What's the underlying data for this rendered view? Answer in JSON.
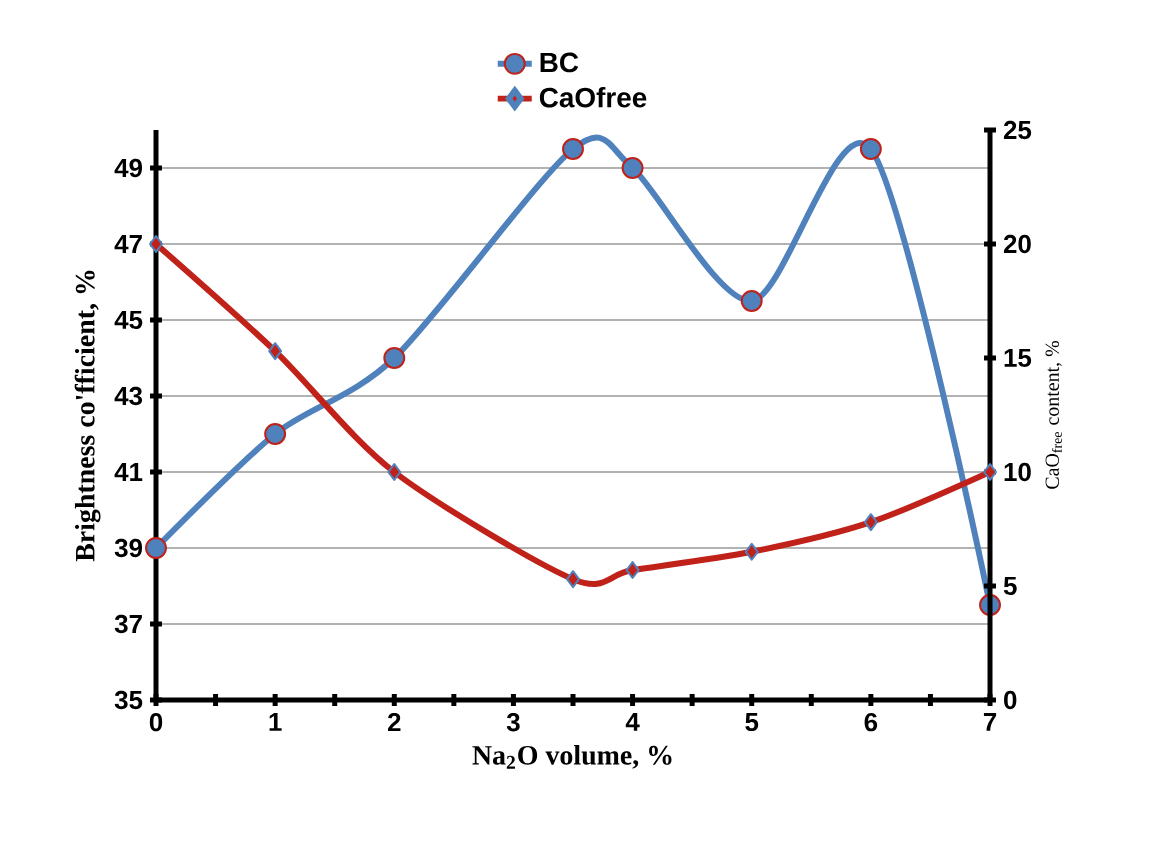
{
  "chart_data": {
    "type": "line",
    "xlabel": "Na$_{2}$O volume, %",
    "ylabel": "Brightness co'fficient, %",
    "y2label": "CaO$_{free}$ content, %",
    "x": [
      0,
      1,
      2,
      3.5,
      4,
      5,
      6,
      7
    ],
    "xlim": [
      0,
      7
    ],
    "xticks": [
      0,
      1,
      2,
      3,
      4,
      5,
      6,
      7
    ],
    "ylim": [
      35,
      50
    ],
    "yticks": [
      35,
      37,
      39,
      41,
      43,
      45,
      47,
      49
    ],
    "y2lim": [
      0,
      25
    ],
    "y2ticks": [
      0,
      5,
      10,
      15,
      20,
      25
    ],
    "grid": "y",
    "legend": "top",
    "line_style": "solid",
    "series": [
      {
        "name": "BC",
        "color": "#4f81bd",
        "marker": "circle",
        "values": [
          39,
          42,
          44,
          49.5,
          49,
          45.5,
          49.5,
          37.5
        ]
      },
      {
        "name": "CaOfree",
        "color": "#c0221a",
        "marker": "diamond",
        "axis": "y2",
        "values": [
          20,
          15.3,
          10,
          5.3,
          5.7,
          6.5,
          7.8,
          10
        ]
      }
    ]
  }
}
